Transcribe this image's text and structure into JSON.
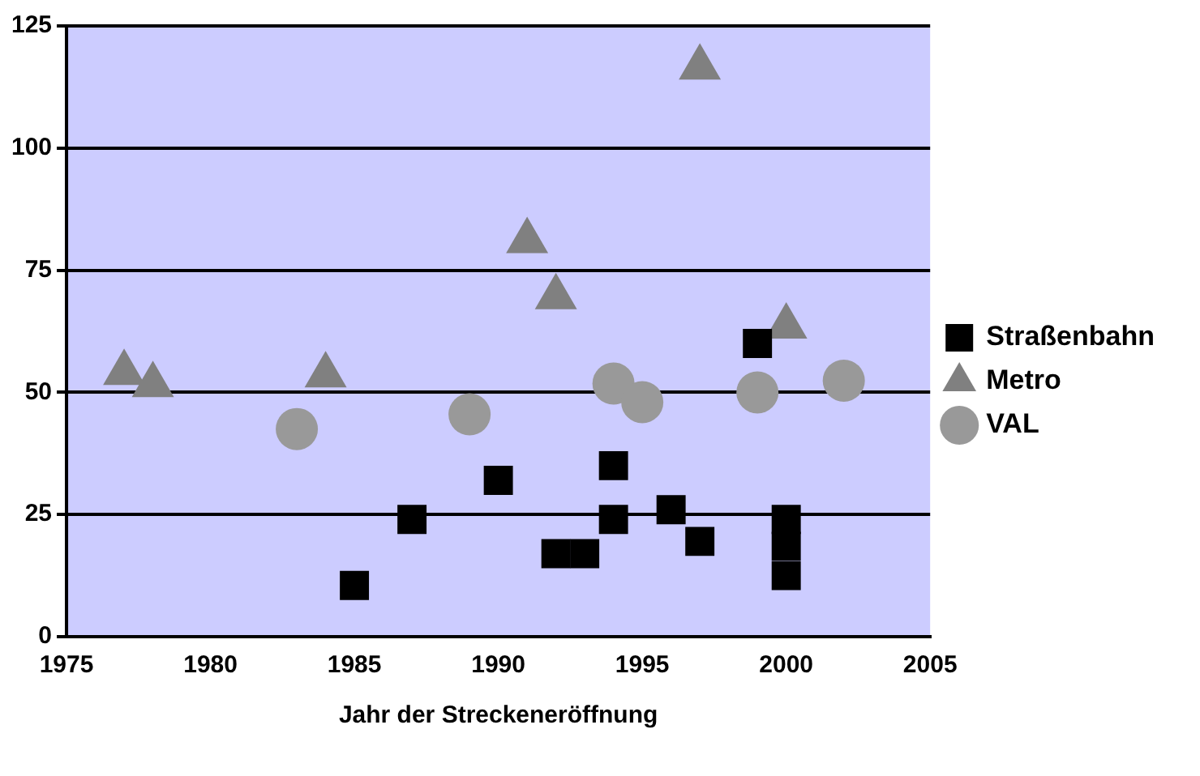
{
  "chart_data": {
    "type": "scatter",
    "xlabel": "Jahr der Streckeneröffnung",
    "xlim": [
      1975,
      2005
    ],
    "xticks": [
      1975,
      1980,
      1985,
      1990,
      1995,
      2000,
      2005
    ],
    "ylim": [
      0,
      125
    ],
    "yticks": [
      0,
      25,
      50,
      75,
      100,
      125
    ],
    "grid": "y",
    "legend": "right",
    "series": [
      {
        "name": "Straßenbahn",
        "color": "#000000",
        "marker": "square",
        "x": [
          1985,
          1987,
          1990,
          1992,
          1993,
          1994,
          1994,
          1996,
          1997,
          1999,
          2000,
          2000,
          2000
        ],
        "values": [
          10.5,
          24,
          32,
          17,
          17,
          35,
          24,
          26,
          19.5,
          60,
          24,
          18.5,
          12.5
        ]
      },
      {
        "name": "Metro",
        "color": "#808080",
        "marker": "triangle",
        "x": [
          1977,
          1978,
          1984,
          1991,
          1992,
          1997,
          2000
        ],
        "values": [
          54,
          51.5,
          53.5,
          81,
          69.5,
          116.5,
          63.5
        ]
      },
      {
        "name": "VAL",
        "color": "#999999",
        "marker": "circle",
        "x": [
          1983,
          1989,
          1994,
          1995,
          1999,
          2002
        ],
        "values": [
          42.5,
          45.5,
          51.8,
          48,
          50,
          52.4
        ]
      }
    ]
  }
}
